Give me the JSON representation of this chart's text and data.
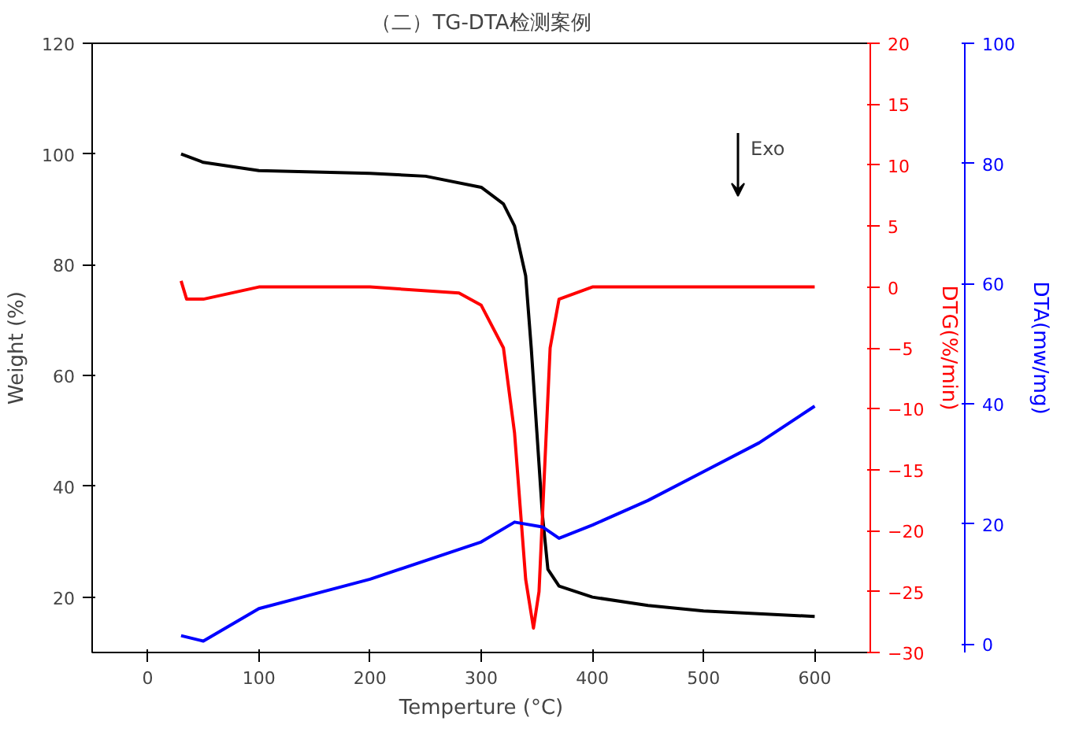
{
  "chart_data": {
    "type": "line",
    "title": "（二）TG-DTA检测案例",
    "xlabel": "Temperture (°C)",
    "ylabel": "Weight (%)",
    "y2label": "DTG(%/min)",
    "y3label": "DTA(mw/mg)",
    "xlim": [
      -50,
      650
    ],
    "xticks": [
      0,
      100,
      200,
      300,
      400,
      500,
      600
    ],
    "ylim": [
      10,
      120
    ],
    "yticks": [
      20,
      40,
      60,
      80,
      100,
      120
    ],
    "y2lim": [
      -30,
      20
    ],
    "y2ticks": [
      -30,
      -25,
      -20,
      -15,
      -10,
      -5,
      0,
      5,
      10,
      15,
      20
    ],
    "y3lim": [
      -1.4,
      100
    ],
    "y3ticks": [
      0,
      20,
      40,
      60,
      80,
      100
    ],
    "grid": false,
    "line_style": "solid",
    "marker": "none",
    "annotations": [
      "Exo"
    ],
    "series": [
      {
        "color": "#000000",
        "x": [
          30,
          50,
          100,
          200,
          250,
          300,
          320,
          330,
          340,
          345,
          350,
          355,
          360,
          370,
          400,
          450,
          500,
          600
        ],
        "values": [
          100,
          98.5,
          97,
          96.5,
          96,
          94,
          91,
          87,
          78,
          65,
          50,
          35,
          25,
          22,
          20,
          18.5,
          17.5,
          16.5
        ]
      },
      {
        "color": "#ff0000",
        "axis": "y2",
        "x": [
          30,
          35,
          50,
          100,
          200,
          280,
          300,
          320,
          330,
          340,
          347,
          352,
          357,
          362,
          370,
          400,
          500,
          600
        ],
        "values": [
          0.5,
          -1,
          -1,
          0,
          0,
          -0.5,
          -1.5,
          -5,
          -12,
          -24,
          -28,
          -25,
          -15,
          -5,
          -1,
          0,
          0,
          0
        ]
      },
      {
        "color": "#0000ff",
        "axis": "y3",
        "x": [
          30,
          50,
          100,
          200,
          300,
          330,
          355,
          370,
          400,
          450,
          500,
          550,
          600
        ],
        "values": [
          1.4,
          0.5,
          5.9,
          10.8,
          17,
          20.3,
          19.5,
          17.6,
          19.8,
          23.9,
          28.7,
          33.5,
          39.6
        ]
      }
    ]
  }
}
